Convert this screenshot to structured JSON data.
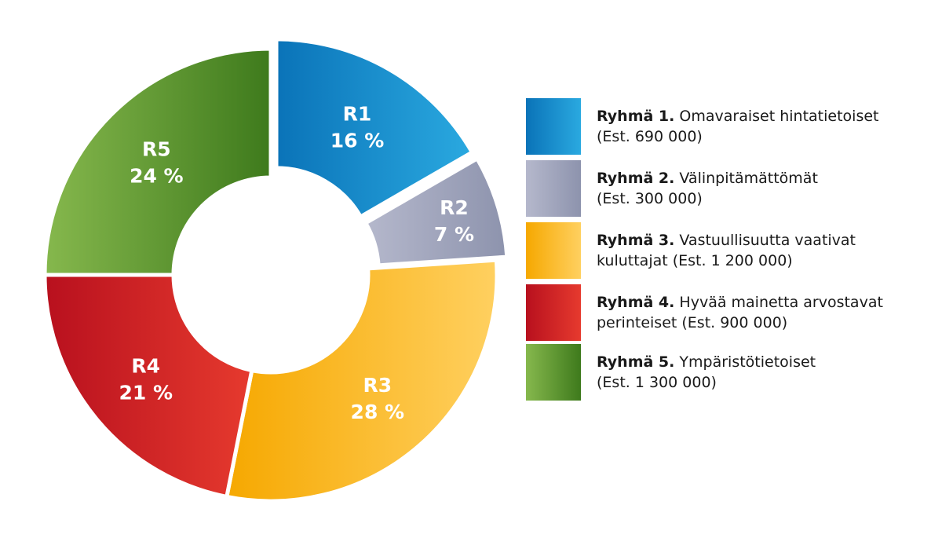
{
  "chart_data": {
    "type": "pie",
    "variant": "donut",
    "exploded": [
      "R1",
      "R2"
    ],
    "slices": [
      {
        "code": "R1",
        "value": 16,
        "label": "16 %",
        "color_start": "#0a73b8",
        "color_end": "#2aa9e0"
      },
      {
        "code": "R2",
        "value": 7,
        "label": "7 %",
        "color_start": "#b5b8cc",
        "color_end": "#8d93ad"
      },
      {
        "code": "R3",
        "value": 28,
        "label": "28 %",
        "color_start": "#f6a800",
        "color_end": "#ffd060"
      },
      {
        "code": "R4",
        "value": 21,
        "label": "21 %",
        "color_start": "#b8101e",
        "color_end": "#e63a2e"
      },
      {
        "code": "R5",
        "value": 24,
        "label": "24 %",
        "color_start": "#86b84d",
        "color_end": "#3e7a1c"
      }
    ],
    "legend": [
      {
        "strong": "Ryhmä 1.",
        "text": " Omavaraiset hintatietoiset",
        "text2": "(Est. 690 000)"
      },
      {
        "strong": "Ryhmä 2.",
        "text": " Välinpitämättömät",
        "text2": "(Est. 300 000)"
      },
      {
        "strong": "Ryhmä 3.",
        "text": " Vastuullisuutta vaativat",
        "text2": "kuluttajat (Est. 1 200 000)"
      },
      {
        "strong": "Ryhmä 4.",
        "text": " Hyvää mainetta arvostavat",
        "text2": "perinteiset (Est. 900 000)"
      },
      {
        "strong": "Ryhmä 5.",
        "text": " Ympäristötietoiset",
        "text2": "(Est. 1 300 000)"
      }
    ]
  }
}
